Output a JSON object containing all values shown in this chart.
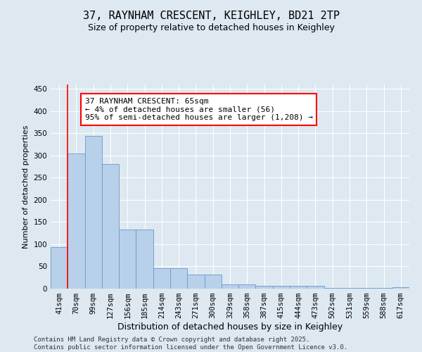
{
  "title": "37, RAYNHAM CRESCENT, KEIGHLEY, BD21 2TP",
  "subtitle": "Size of property relative to detached houses in Keighley",
  "xlabel": "Distribution of detached houses by size in Keighley",
  "ylabel": "Number of detached properties",
  "categories": [
    "41sqm",
    "70sqm",
    "99sqm",
    "127sqm",
    "156sqm",
    "185sqm",
    "214sqm",
    "243sqm",
    "271sqm",
    "300sqm",
    "329sqm",
    "358sqm",
    "387sqm",
    "415sqm",
    "444sqm",
    "473sqm",
    "502sqm",
    "531sqm",
    "559sqm",
    "588sqm",
    "617sqm"
  ],
  "values": [
    93,
    305,
    345,
    280,
    133,
    133,
    46,
    46,
    31,
    31,
    9,
    9,
    7,
    7,
    6,
    6,
    2,
    2,
    1,
    1,
    3
  ],
  "bar_color": "#b8d0ea",
  "bar_edge_color": "#6699cc",
  "annotation_text": "37 RAYNHAM CRESCENT: 65sqm\n← 4% of detached houses are smaller (56)\n95% of semi-detached houses are larger (1,208) →",
  "annotation_box_color": "white",
  "annotation_box_edge_color": "red",
  "vline_x_index": 0.5,
  "ylim": [
    0,
    460
  ],
  "yticks": [
    0,
    50,
    100,
    150,
    200,
    250,
    300,
    350,
    400,
    450
  ],
  "footer": "Contains HM Land Registry data © Crown copyright and database right 2025.\nContains public sector information licensed under the Open Government Licence v3.0.",
  "background_color": "#dde8f0",
  "grid_color": "white",
  "title_fontsize": 11,
  "subtitle_fontsize": 9,
  "xlabel_fontsize": 9,
  "ylabel_fontsize": 8,
  "tick_fontsize": 7.5,
  "annotation_fontsize": 8,
  "footer_fontsize": 6.5
}
